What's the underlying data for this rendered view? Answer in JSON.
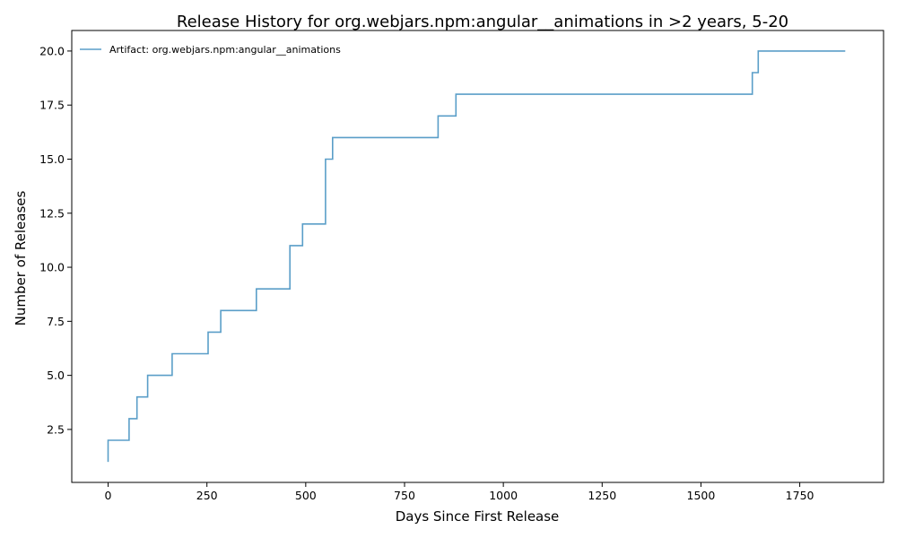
{
  "chart_data": {
    "type": "line",
    "step": true,
    "title": "Release History for org.webjars.npm:angular__animations in >2 years, 5-20",
    "xlabel": "Days Since First Release",
    "ylabel": "Number of Releases",
    "xlim": [
      -92,
      1962
    ],
    "ylim": [
      0.05,
      20.95
    ],
    "xticks": [
      0,
      250,
      500,
      750,
      1000,
      1250,
      1500,
      1750
    ],
    "xtick_labels": [
      "0",
      "250",
      "500",
      "750",
      "1000",
      "1250",
      "1500",
      "1750"
    ],
    "yticks": [
      2.5,
      5.0,
      7.5,
      10.0,
      12.5,
      15.0,
      17.5,
      20.0
    ],
    "ytick_labels": [
      "2.5",
      "5.0",
      "7.5",
      "10.0",
      "12.5",
      "15.0",
      "17.5",
      "20.0"
    ],
    "grid": false,
    "legend_position": "top-left",
    "series": [
      {
        "name": "Artifact: org.webjars.npm:angular__animations",
        "color": "#5a9ec8",
        "points": [
          [
            0,
            1
          ],
          [
            0,
            2
          ],
          [
            53,
            3
          ],
          [
            73,
            4
          ],
          [
            100,
            5
          ],
          [
            162,
            6
          ],
          [
            253,
            7
          ],
          [
            285,
            8
          ],
          [
            375,
            9
          ],
          [
            460,
            11
          ],
          [
            492,
            12
          ],
          [
            550,
            15
          ],
          [
            568,
            16
          ],
          [
            835,
            17
          ],
          [
            880,
            18
          ],
          [
            1630,
            19
          ],
          [
            1645,
            20
          ],
          [
            1865,
            20
          ]
        ]
      }
    ]
  }
}
